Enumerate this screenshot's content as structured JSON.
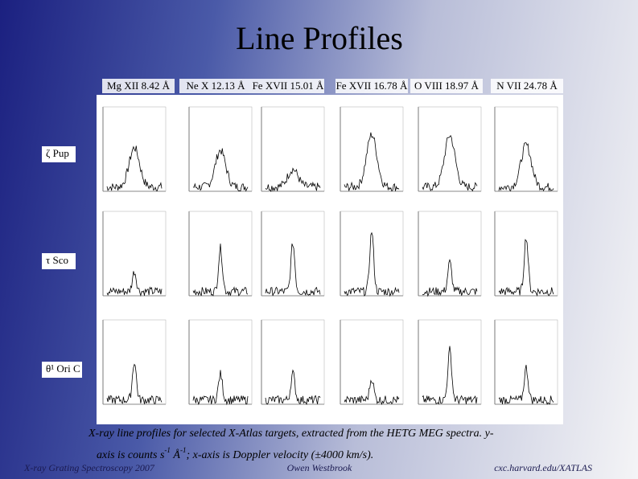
{
  "header": {
    "title": "Line Profiles",
    "columns": [
      "Mg XII  8.42 Å",
      "Ne X  12.13 Å",
      "Fe XVII  15.01 Å",
      "Fe XVII  16.78 Å",
      "O VIII 18.97 Å",
      "N VII 24.78 Å"
    ]
  },
  "rows": [
    "ζ Pup",
    "τ Sco",
    "θ¹ Ori C"
  ],
  "caption": {
    "part1": "X-ray line profiles for selected X-Atlas targets, extracted from the HETG MEG spectra.  y-",
    "part2": "axis is counts s",
    "sup1": "-1",
    "part3": " Å",
    "sup2": "-1",
    "part4": "; x-axis is Doppler velocity (±4000 km/s)."
  },
  "footer": {
    "left": "X-ray Grating Spectroscopy 2007",
    "center": "Owen Westbrook",
    "right": "cxc.harvard.edu/XATLAS"
  }
}
